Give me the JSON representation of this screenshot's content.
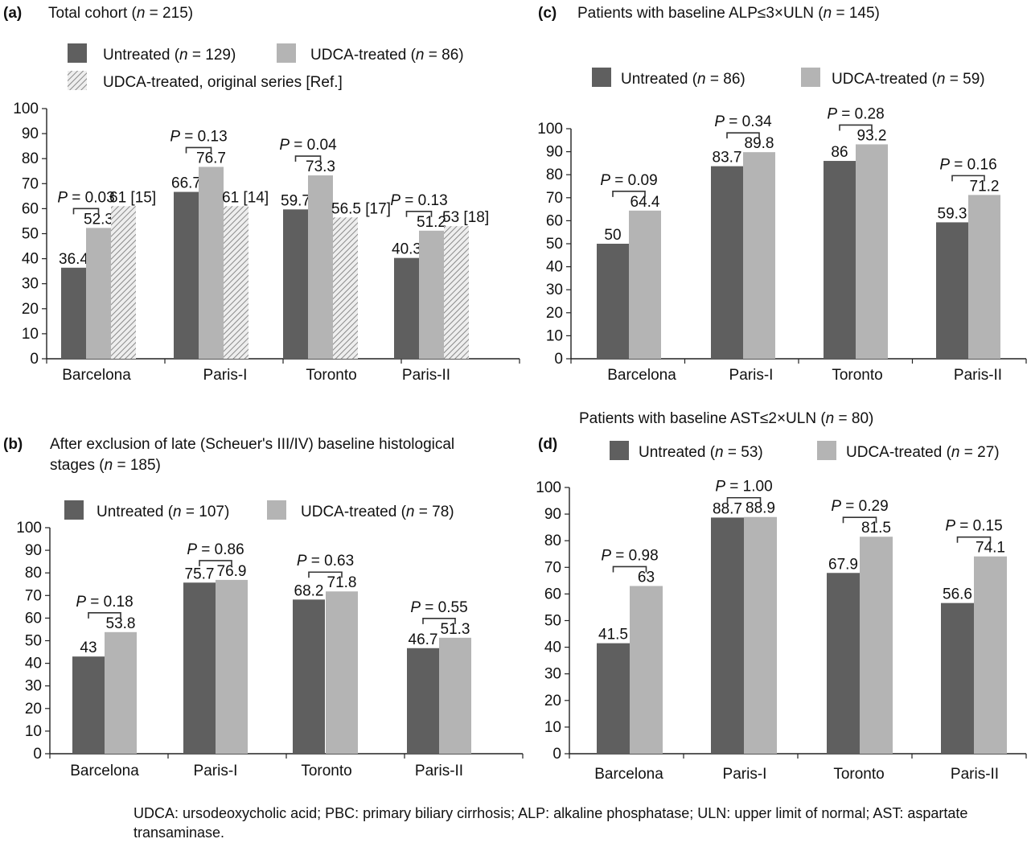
{
  "colors": {
    "untreated": "#5f5f5f",
    "treated": "#b4b4b4",
    "original": "hatched-grey",
    "axis": "#222222"
  },
  "chart_data": [
    {
      "panel": "(a)",
      "type": "bar",
      "title_parts": [
        "Total cohort (",
        "n",
        " = 215)"
      ],
      "legend": [
        {
          "label_parts": [
            "Untreated (",
            "n",
            " = 129)"
          ],
          "style": "untreated"
        },
        {
          "label_parts": [
            "UDCA-treated (",
            "n",
            " = 86)"
          ],
          "style": "treated"
        },
        {
          "label_parts": [
            "UDCA-treated, original series [Ref.]"
          ],
          "style": "original"
        }
      ],
      "categories": [
        "Barcelona",
        "Paris-I",
        "Toronto",
        "Paris-II"
      ],
      "series": [
        {
          "name": "Untreated",
          "style": "untreated",
          "values": [
            36.4,
            66.7,
            59.7,
            40.3
          ],
          "labels": [
            "36.4",
            "66.7",
            "59.7",
            "40.3"
          ]
        },
        {
          "name": "UDCA-treated",
          "style": "treated",
          "values": [
            52.3,
            76.7,
            73.3,
            51.2
          ],
          "labels": [
            "52.3",
            "76.7",
            "73.3",
            "51.2"
          ]
        },
        {
          "name": "UDCA-treated, original series [Ref.]",
          "style": "original",
          "values": [
            61,
            61,
            56.5,
            53
          ],
          "labels": [
            "61 [15]",
            "61 [14]",
            "56.5 [17]",
            "53 [18]"
          ]
        }
      ],
      "p_values": [
        "0.03",
        "0.13",
        "0.04",
        "0.13"
      ],
      "ylim": [
        0,
        100
      ],
      "yticks": [
        0,
        10,
        20,
        30,
        40,
        50,
        60,
        70,
        80,
        90,
        100
      ],
      "grid": false
    },
    {
      "panel": "(b)",
      "type": "bar",
      "title_lines": [
        "After exclusion of late (Scheuer's III/IV) baseline histological"
      ],
      "title_parts": [
        "stages (",
        "n",
        " = 185)"
      ],
      "legend": [
        {
          "label_parts": [
            "Untreated (",
            "n",
            " = 107)"
          ],
          "style": "untreated"
        },
        {
          "label_parts": [
            "UDCA-treated (",
            "n",
            " = 78)"
          ],
          "style": "treated"
        }
      ],
      "categories": [
        "Barcelona",
        "Paris-I",
        "Toronto",
        "Paris-II"
      ],
      "series": [
        {
          "name": "Untreated",
          "style": "untreated",
          "values": [
            43,
            75.7,
            68.2,
            46.7
          ],
          "labels": [
            "43",
            "75.7",
            "68.2",
            "46.7"
          ]
        },
        {
          "name": "UDCA-treated",
          "style": "treated",
          "values": [
            53.8,
            76.9,
            71.8,
            51.3
          ],
          "labels": [
            "53.8",
            "76.9",
            "71.8",
            "51.3"
          ]
        }
      ],
      "p_values": [
        "0.18",
        "0.86",
        "0.63",
        "0.55"
      ],
      "ylim": [
        0,
        100
      ],
      "yticks": [
        0,
        10,
        20,
        30,
        40,
        50,
        60,
        70,
        80,
        90,
        100
      ],
      "grid": false
    },
    {
      "panel": "(c)",
      "type": "bar",
      "title_parts": [
        "Patients with baseline ALP≤3×ULN (",
        "n",
        " = 145)"
      ],
      "legend": [
        {
          "label_parts": [
            "Untreated (",
            "n",
            " = 86)"
          ],
          "style": "untreated"
        },
        {
          "label_parts": [
            "UDCA-treated (",
            "n",
            " = 59)"
          ],
          "style": "treated"
        }
      ],
      "categories": [
        "Barcelona",
        "Paris-I",
        "Toronto",
        "Paris-II"
      ],
      "series": [
        {
          "name": "Untreated",
          "style": "untreated",
          "values": [
            50,
            83.7,
            86,
            59.3
          ],
          "labels": [
            "50",
            "83.7",
            "86",
            "59.3"
          ]
        },
        {
          "name": "UDCA-treated",
          "style": "treated",
          "values": [
            64.4,
            89.8,
            93.2,
            71.2
          ],
          "labels": [
            "64.4",
            "89.8",
            "93.2",
            "71.2"
          ]
        }
      ],
      "p_values": [
        "0.09",
        "0.34",
        "0.28",
        "0.16"
      ],
      "ylim": [
        0,
        100
      ],
      "yticks": [
        0,
        10,
        20,
        30,
        40,
        50,
        60,
        70,
        80,
        90,
        100
      ],
      "grid": false
    },
    {
      "panel": "(d)",
      "type": "bar",
      "title_parts": [
        "Patients with baseline AST≤2×ULN (",
        "n",
        " = 80)"
      ],
      "legend": [
        {
          "label_parts": [
            "Untreated (",
            "n",
            " = 53)"
          ],
          "style": "untreated"
        },
        {
          "label_parts": [
            "UDCA-treated (",
            "n",
            " = 27)"
          ],
          "style": "treated"
        }
      ],
      "categories": [
        "Barcelona",
        "Paris-I",
        "Toronto",
        "Paris-II"
      ],
      "series": [
        {
          "name": "Untreated",
          "style": "untreated",
          "values": [
            41.5,
            88.7,
            67.9,
            56.6
          ],
          "labels": [
            "41.5",
            "88.7",
            "67.9",
            "56.6"
          ]
        },
        {
          "name": "UDCA-treated",
          "style": "treated",
          "values": [
            63,
            88.9,
            81.5,
            74.1
          ],
          "labels": [
            "63",
            "88.9",
            "81.5",
            "74.1"
          ]
        }
      ],
      "p_values": [
        "0.98",
        "1.00",
        "0.29",
        "0.15"
      ],
      "ylim": [
        0,
        100
      ],
      "yticks": [
        0,
        10,
        20,
        30,
        40,
        50,
        60,
        70,
        80,
        90,
        100
      ],
      "grid": false
    }
  ],
  "footnote": "UDCA: ursodeoxycholic acid; PBC: primary biliary cirrhosis; ALP: alkaline phosphatase; ULN: upper limit of normal; AST: aspartate transaminase."
}
